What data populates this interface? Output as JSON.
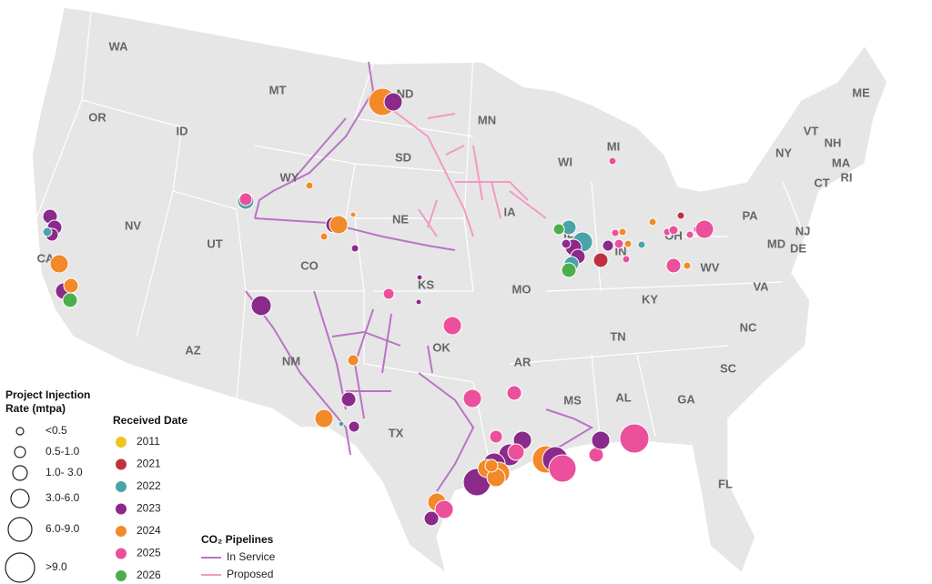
{
  "states": [
    "WA",
    "OR",
    "MT",
    "ID",
    "ND",
    "MN",
    "WY",
    "SD",
    "WI",
    "MI",
    "NV",
    "CA",
    "UT",
    "CO",
    "NE",
    "IA",
    "IL",
    "IN",
    "OH",
    "PA",
    "NY",
    "VT",
    "NH",
    "ME",
    "MA",
    "CT",
    "RI",
    "NJ",
    "MD",
    "DE",
    "KS",
    "MO",
    "KY",
    "WV",
    "VA",
    "AZ",
    "NM",
    "OK",
    "AR",
    "TN",
    "NC",
    "SC",
    "TX",
    "MS",
    "AL",
    "GA",
    "FL"
  ],
  "size_legend": {
    "title": "Project Injection Rate (mtpa)",
    "items": [
      "<0.5",
      "0.5-1.0",
      "1.0- 3.0",
      "3.0-6.0",
      "6.0-9.0",
      ">9.0"
    ]
  },
  "color_legend": {
    "title": "Received Date",
    "items": [
      {
        "label": "2011",
        "color": "#f0c419"
      },
      {
        "label": "2021",
        "color": "#c0313f"
      },
      {
        "label": "2022",
        "color": "#4aa3a8"
      },
      {
        "label": "2023",
        "color": "#8a2a8b"
      },
      {
        "label": "2024",
        "color": "#f28a2a"
      },
      {
        "label": "2025",
        "color": "#ec4f9b"
      },
      {
        "label": "2026",
        "color": "#4cae4c"
      }
    ]
  },
  "pipeline_legend": {
    "title": "CO₂ Pipelines",
    "items": [
      {
        "label": "In Service",
        "color": "#b874c4"
      },
      {
        "label": "Proposed",
        "color": "#f29ac4"
      }
    ]
  }
}
